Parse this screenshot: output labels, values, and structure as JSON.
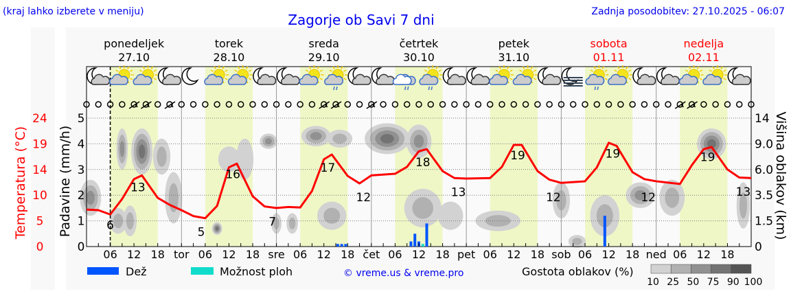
{
  "header": {
    "hint": "(kraj lahko izberete v meniju)",
    "title": "Zagorje ob Savi 7 dni",
    "updated": "Zadnja posodobitev: 27.10.2025 - 06:07"
  },
  "days": [
    {
      "name": "ponedeljek",
      "date": "27.10",
      "weekend": false
    },
    {
      "name": "torek",
      "date": "28.10",
      "weekend": false
    },
    {
      "name": "sreda",
      "date": "29.10",
      "weekend": false
    },
    {
      "name": "četrtek",
      "date": "30.10",
      "weekend": false
    },
    {
      "name": "petek",
      "date": "31.10",
      "weekend": false
    },
    {
      "name": "sobota",
      "date": "01.11",
      "weekend": true
    },
    {
      "name": "nedelja",
      "date": "02.11",
      "weekend": true
    }
  ],
  "weather_icons": [
    "moon-cloud",
    "sun-cloud",
    "sun-cloud",
    "moon-cloud",
    "moon",
    "sun-cloud",
    "sun-cloud",
    "moon-cloud",
    "moon-cloud",
    "sun-cloud",
    "sun-cloud-rain",
    "moon-cloud",
    "moon-cloud",
    "cloud-rain",
    "sun-cloud-rain",
    "moon-cloud",
    "moon-cloud",
    "sun-cloud",
    "sun-cloud",
    "moon-cloud",
    "fog",
    "sun-cloud-rain",
    "sun-cloud",
    "moon-cloud",
    "moon-cloud",
    "sun-cloud",
    "sun-cloud",
    "moon-cloud"
  ],
  "wind_barbs_hours": [
    12,
    15,
    21,
    60,
    63,
    72,
    150,
    153
  ],
  "legend": {
    "rain": "Dež",
    "showers": "Možnost ploh",
    "credit": "© vreme.us & vreme.pro",
    "cloud_density": "Gostota oblakov (%)",
    "density_ticks": [
      "10",
      "25",
      "50",
      "75",
      "90",
      "100"
    ]
  },
  "colors": {
    "temperature": "#ff0000",
    "rain": "#0055ff",
    "showers": "#11dccc",
    "title": "#0000ee",
    "daylight": "#eff7c6",
    "density": [
      "#d2d2d2",
      "#b1b1b1",
      "#919191",
      "#737373",
      "#555555"
    ]
  },
  "chart_data": {
    "type": "line",
    "x_unit": "hours since Mon 27.10 00:00",
    "xlim": [
      0,
      168
    ],
    "x_ticks": [
      "06",
      "12",
      "18",
      "tor",
      "06",
      "12",
      "18",
      "sre",
      "06",
      "12",
      "18",
      "čet",
      "06",
      "12",
      "18",
      "pet",
      "06",
      "12",
      "18",
      "sob",
      "06",
      "12",
      "18",
      "ned",
      "06",
      "12",
      "18"
    ],
    "left_axis_temp": {
      "label": "Temperatura (°C)",
      "ticks": [
        "0",
        "5",
        "10",
        "14",
        "19",
        "24"
      ],
      "ylim": [
        0,
        24
      ]
    },
    "left_axis_precip": {
      "label": "Padavine (mm/h)",
      "ticks": [
        "0",
        "1",
        "2",
        "3",
        "4",
        "5"
      ],
      "ylim": [
        0,
        5
      ]
    },
    "right_axis_cloud": {
      "label": "Višina oblakov (km)",
      "ticks": [
        "0",
        "1.5",
        "3.5",
        "6.0",
        "9.0",
        "14"
      ]
    },
    "now_hour": 6,
    "temperature": {
      "x": [
        0,
        3,
        6,
        9,
        12,
        14,
        18,
        21,
        24,
        27,
        30,
        33,
        36,
        38,
        42,
        45,
        48,
        51,
        54,
        57,
        60,
        62,
        66,
        69,
        72,
        78,
        81,
        84,
        86,
        90,
        93,
        96,
        102,
        105,
        108,
        110,
        114,
        117,
        120,
        126,
        129,
        132,
        134,
        138,
        141,
        144,
        150,
        153,
        156,
        158,
        162,
        165,
        168
      ],
      "y": [
        6.9,
        6.8,
        6.0,
        8.9,
        12.6,
        13.3,
        9.1,
        7.8,
        6.8,
        5.7,
        5.3,
        7.6,
        14.8,
        15.5,
        9.4,
        7.5,
        7.2,
        7.4,
        7.3,
        10.4,
        16.3,
        17.2,
        13.2,
        11.8,
        13.3,
        13.6,
        14.9,
        17.8,
        18.2,
        14.1,
        12.8,
        12.7,
        12.8,
        14.9,
        19.0,
        19.0,
        14.1,
        12.5,
        11.9,
        12.2,
        14.8,
        19.4,
        18.8,
        13.9,
        12.6,
        12.2,
        11.7,
        15.2,
        18.2,
        18.6,
        14.4,
        12.9,
        12.8
      ]
    },
    "temp_labels": [
      {
        "x": 6,
        "v": "6",
        "t": 4.2
      },
      {
        "x": 13,
        "v": "13",
        "t": 11.2
      },
      {
        "x": 29,
        "v": "5",
        "t": 2.9
      },
      {
        "x": 37,
        "v": "16",
        "t": 13.7
      },
      {
        "x": 47,
        "v": "7",
        "t": 4.8
      },
      {
        "x": 61,
        "v": "17",
        "t": 14.9
      },
      {
        "x": 70,
        "v": "12",
        "t": 9.4
      },
      {
        "x": 85,
        "v": "18",
        "t": 15.9
      },
      {
        "x": 94,
        "v": "13",
        "t": 10.3
      },
      {
        "x": 109,
        "v": "19",
        "t": 17.2
      },
      {
        "x": 118,
        "v": "12",
        "t": 9.4
      },
      {
        "x": 133,
        "v": "19",
        "t": 17.5
      },
      {
        "x": 142,
        "v": "12",
        "t": 9.4
      },
      {
        "x": 157,
        "v": "19",
        "t": 16.9
      },
      {
        "x": 166,
        "v": "13",
        "t": 10.4
      }
    ],
    "precipitation": [
      {
        "x": 63.5,
        "v": 0.1,
        "kind": "rain"
      },
      {
        "x": 64.5,
        "v": 0.1,
        "kind": "rain"
      },
      {
        "x": 65.5,
        "v": 0.1,
        "kind": "rain"
      },
      {
        "x": 82,
        "v": 0.2,
        "kind": "rain"
      },
      {
        "x": 83,
        "v": 0.5,
        "kind": "rain"
      },
      {
        "x": 84,
        "v": 0.2,
        "kind": "rain"
      },
      {
        "x": 85,
        "v": 0.1,
        "kind": "showers"
      },
      {
        "x": 86,
        "v": 0.9,
        "kind": "rain"
      },
      {
        "x": 131,
        "v": 1.2,
        "kind": "rain"
      }
    ],
    "cloud_patches": [
      {
        "x": 1,
        "lvl": 1.9,
        "w": 4,
        "h": 1.4,
        "d": 75
      },
      {
        "x": 8,
        "lvl": 1.0,
        "w": 3,
        "h": 1.0,
        "d": 50
      },
      {
        "x": 11,
        "lvl": 1.0,
        "w": 2,
        "h": 1.2,
        "d": 60
      },
      {
        "x": 9,
        "lvl": 3.8,
        "w": 1.5,
        "h": 1.6,
        "d": 75
      },
      {
        "x": 14,
        "lvl": 3.7,
        "w": 4,
        "h": 1.8,
        "d": 90
      },
      {
        "x": 19,
        "lvl": 3.5,
        "w": 3,
        "h": 1.4,
        "d": 50
      },
      {
        "x": 22,
        "lvl": 1.9,
        "w": 3,
        "h": 2.0,
        "d": 50
      },
      {
        "x": 33,
        "lvl": 0.7,
        "w": 1.2,
        "h": 0.5,
        "d": 90
      },
      {
        "x": 36,
        "lvl": 3.4,
        "w": 4,
        "h": 1.0,
        "d": 25
      },
      {
        "x": 40,
        "lvl": 3.4,
        "w": 3,
        "h": 1.6,
        "d": 25
      },
      {
        "x": 46,
        "lvl": 4.1,
        "w": 3,
        "h": 0.6,
        "d": 75
      },
      {
        "x": 48,
        "lvl": 0.9,
        "w": 1.2,
        "h": 0.8,
        "d": 50
      },
      {
        "x": 52,
        "lvl": 0.9,
        "w": 1.5,
        "h": 0.8,
        "d": 50
      },
      {
        "x": 58,
        "lvl": 4.3,
        "w": 6,
        "h": 0.8,
        "d": 75
      },
      {
        "x": 64,
        "lvl": 4.2,
        "w": 5,
        "h": 0.7,
        "d": 50
      },
      {
        "x": 62,
        "lvl": 1.2,
        "w": 6,
        "h": 1.1,
        "d": 50
      },
      {
        "x": 76,
        "lvl": 4.2,
        "w": 10,
        "h": 1.2,
        "d": 90
      },
      {
        "x": 84,
        "lvl": 4.1,
        "w": 5,
        "h": 1.3,
        "d": 75
      },
      {
        "x": 85,
        "lvl": 1.5,
        "w": 8,
        "h": 1.5,
        "d": 50
      },
      {
        "x": 92,
        "lvl": 1.2,
        "w": 5,
        "h": 1.1,
        "d": 25
      },
      {
        "x": 104,
        "lvl": 1.0,
        "w": 10,
        "h": 0.8,
        "d": 50
      },
      {
        "x": 120,
        "lvl": 1.8,
        "w": 3,
        "h": 1.4,
        "d": 50
      },
      {
        "x": 124,
        "lvl": 0.2,
        "w": 3,
        "h": 0.5,
        "d": 50
      },
      {
        "x": 131,
        "lvl": 1.2,
        "w": 6,
        "h": 1.6,
        "d": 50
      },
      {
        "x": 140,
        "lvl": 2.0,
        "w": 6,
        "h": 1.0,
        "d": 75
      },
      {
        "x": 148,
        "lvl": 1.9,
        "w": 5,
        "h": 1.4,
        "d": 50
      },
      {
        "x": 158,
        "lvl": 4.0,
        "w": 6,
        "h": 1.2,
        "d": 90
      },
      {
        "x": 166,
        "lvl": 1.6,
        "w": 2,
        "h": 1.8,
        "d": 50
      }
    ]
  }
}
